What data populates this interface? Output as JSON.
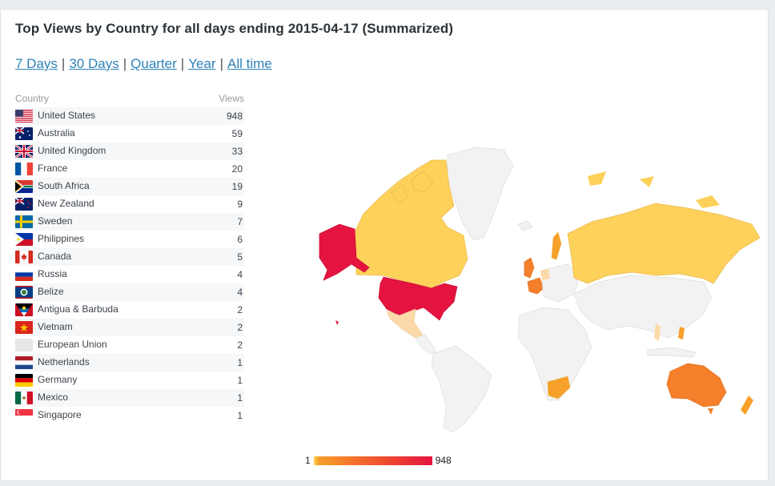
{
  "title": "Top Views by Country for all days ending 2015-04-17 (Summarized)",
  "periods": [
    "7 Days",
    "30 Days",
    "Quarter",
    "Year",
    "All time"
  ],
  "table": {
    "country_header": "Country",
    "views_header": "Views",
    "rows": [
      {
        "country": "United States",
        "views": "948",
        "flag": "us-flag-icon"
      },
      {
        "country": "Australia",
        "views": "59",
        "flag": "au-flag-icon"
      },
      {
        "country": "United Kingdom",
        "views": "33",
        "flag": "gb-flag-icon"
      },
      {
        "country": "France",
        "views": "20",
        "flag": "fr-flag-icon"
      },
      {
        "country": "South Africa",
        "views": "19",
        "flag": "za-flag-icon"
      },
      {
        "country": "New Zealand",
        "views": "9",
        "flag": "nz-flag-icon"
      },
      {
        "country": "Sweden",
        "views": "7",
        "flag": "se-flag-icon"
      },
      {
        "country": "Philippines",
        "views": "6",
        "flag": "ph-flag-icon"
      },
      {
        "country": "Canada",
        "views": "5",
        "flag": "ca-flag-icon"
      },
      {
        "country": "Russia",
        "views": "4",
        "flag": "ru-flag-icon"
      },
      {
        "country": "Belize",
        "views": "4",
        "flag": "bz-flag-icon"
      },
      {
        "country": "Antigua & Barbuda",
        "views": "2",
        "flag": "ag-flag-icon"
      },
      {
        "country": "Vietnam",
        "views": "2",
        "flag": "vn-flag-icon"
      },
      {
        "country": "European Union",
        "views": "2",
        "flag": "eu-flag-icon"
      },
      {
        "country": "Netherlands",
        "views": "1",
        "flag": "nl-flag-icon"
      },
      {
        "country": "Germany",
        "views": "1",
        "flag": "de-flag-icon"
      },
      {
        "country": "Mexico",
        "views": "1",
        "flag": "mx-flag-icon"
      },
      {
        "country": "Singapore",
        "views": "1",
        "flag": "sg-flag-icon"
      }
    ]
  },
  "legend": {
    "min": "1",
    "max": "948"
  },
  "colors": {
    "link": "#2f83b8",
    "max": "#e5133f",
    "high": "#f57f2a",
    "mid": "#f7a02a",
    "low": "#ffd65a",
    "faint": "#fcd9a8",
    "none": "#f2f2f2"
  }
}
